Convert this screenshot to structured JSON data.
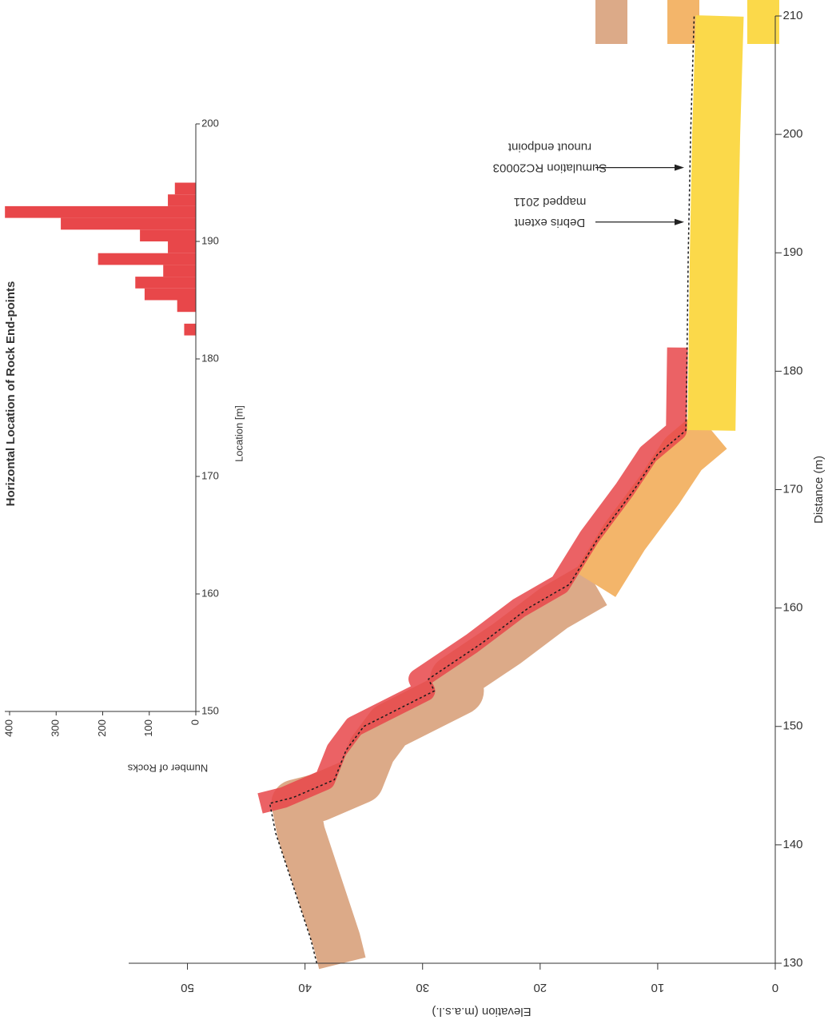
{
  "chart_data": [
    {
      "type": "profile",
      "x_label": "Distance (m)",
      "y_label": "Elevation (m.a.s.l.)",
      "x": [
        130,
        132,
        135,
        138,
        141,
        143.5,
        144,
        145.5,
        148,
        150,
        153,
        154,
        157,
        160,
        162,
        166,
        170,
        173,
        175,
        182,
        190,
        200,
        210
      ],
      "values": [
        39,
        39.5,
        40.5,
        41.5,
        42.5,
        43,
        41,
        37.5,
        36.5,
        35,
        29,
        29.5,
        25,
        21,
        17.5,
        15,
        12,
        10,
        7.6,
        7.5,
        7.4,
        7.2,
        6.9
      ],
      "color": "#1a1a1a",
      "layer_colors": [
        "#dcaa88",
        "#f3b56a",
        "#fbd94a"
      ],
      "trajectory_color": "#e8474a",
      "xlim": [
        130,
        210
      ],
      "xticks": [
        130,
        140,
        150,
        160,
        170,
        180,
        190,
        200,
        210
      ],
      "ylim": [
        0,
        55
      ],
      "yticks": [
        0,
        10,
        20,
        30,
        40,
        50
      ],
      "annotations": [
        {
          "x": 192.6,
          "lines": [
            "Debris extent",
            "mapped 2011"
          ]
        },
        {
          "x": 197.2,
          "lines": [
            "Sumulation RC20003",
            "runout endpoint"
          ]
        }
      ]
    },
    {
      "type": "histogram",
      "title": "Horizontal Location of Rock End-points",
      "x_label": "Location [m]",
      "y_label": "Number of Rocks",
      "bins": [
        182,
        183,
        184,
        185,
        186,
        187,
        188,
        189,
        190,
        191,
        192,
        193,
        194,
        195,
        196
      ],
      "values": [
        25,
        0,
        40,
        110,
        130,
        70,
        210,
        60,
        120,
        290,
        410,
        60,
        45,
        0
      ],
      "color": "#e8474a",
      "xlim": [
        150,
        200
      ],
      "xticks": [
        150,
        160,
        170,
        180,
        190,
        200
      ],
      "ylim": [
        0,
        400
      ],
      "yticks": [
        0,
        100,
        200,
        300,
        400
      ]
    }
  ]
}
